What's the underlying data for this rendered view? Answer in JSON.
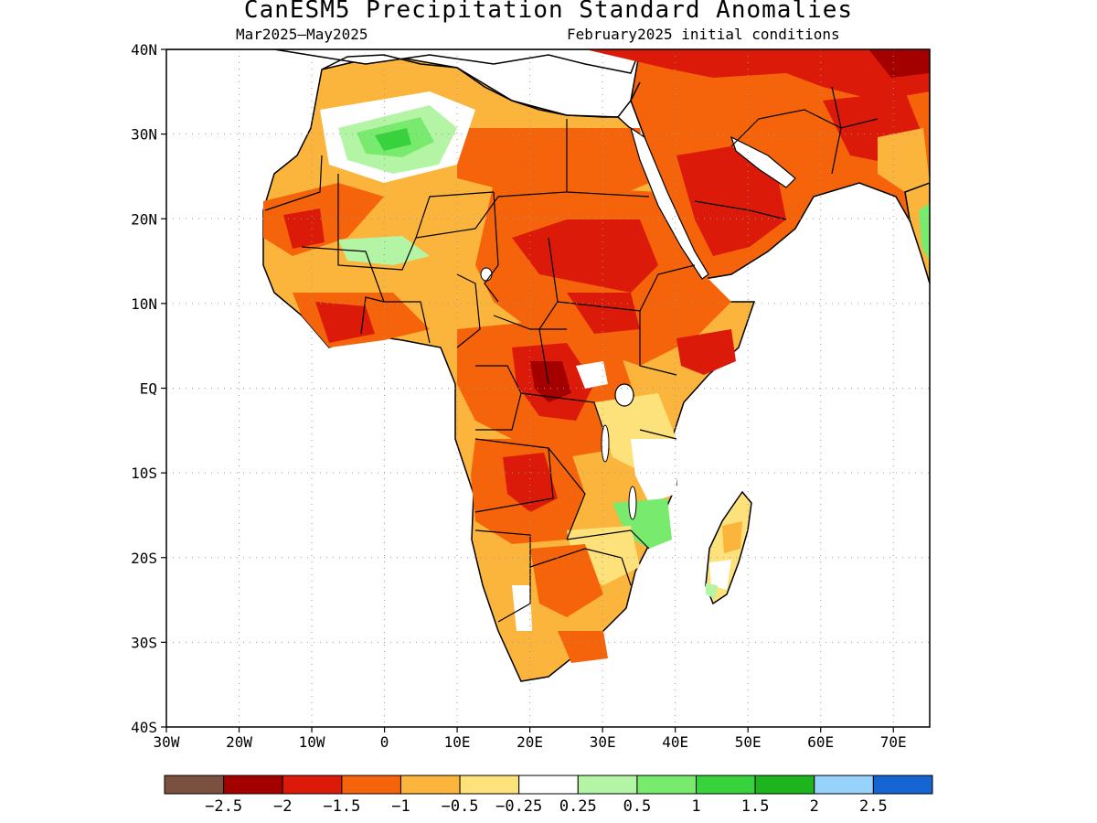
{
  "title": "CanESM5 Precipitation Standard Anomalies",
  "subtitle_left": "Mar2025–May2025",
  "subtitle_right": "February2025 initial conditions",
  "y_ticks": [
    "40N",
    "30N",
    "20N",
    "10N",
    "EQ",
    "10S",
    "20S",
    "30S",
    "40S"
  ],
  "x_ticks": [
    "30W",
    "20W",
    "10W",
    "0",
    "10E",
    "20E",
    "30E",
    "40E",
    "50E",
    "60E",
    "70E"
  ],
  "colorbar": {
    "colors": [
      "#7a5040",
      "#a50000",
      "#dc1a0a",
      "#f5640a",
      "#fbb43c",
      "#fde17a",
      "#ffffff",
      "#b4f5a5",
      "#78eb6e",
      "#37d23c",
      "#1eb41e",
      "#96d2fa",
      "#1464d2"
    ],
    "labels": [
      "−2.5",
      "−2",
      "−1.5",
      "−1",
      "−0.5",
      "−0.25",
      "0.25",
      "0.5",
      "1",
      "1.5",
      "2",
      "2.5"
    ]
  },
  "colors": {
    "ocean": "#ffffff",
    "coast": "#000000",
    "grid": "#9a9a9a"
  }
}
